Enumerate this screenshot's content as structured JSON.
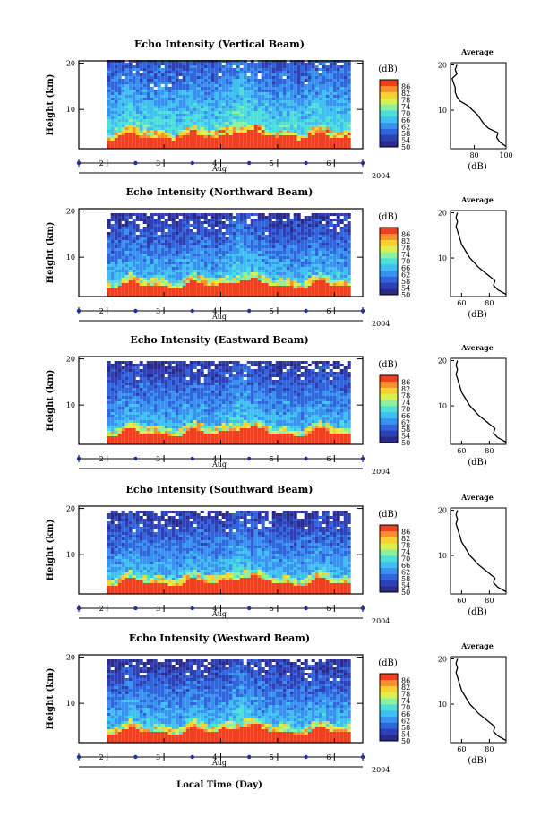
{
  "chart_data": {
    "type": "heatmap",
    "figure": {
      "xlabel": "Local Time (Day)"
    },
    "time_axis": {
      "range_days": [
        1.5,
        6.5
      ],
      "ticks": [
        2,
        3,
        4,
        5,
        6
      ],
      "tick_labels": [
        "2",
        "3",
        "4",
        "5",
        "6"
      ],
      "month_label": "Aug",
      "year_label": "2004",
      "data_start_day": 2.0,
      "data_end_day": 6.25
    },
    "height_axis": {
      "label": "Height (km)",
      "range_km": [
        1.5,
        20.5
      ],
      "ticks": [
        10,
        20
      ],
      "tick_labels": [
        "10",
        "20"
      ]
    },
    "colorbar": {
      "title": "(dB)",
      "range_db": [
        50,
        90
      ],
      "tick_values": [
        50,
        54,
        58,
        62,
        66,
        70,
        74,
        78,
        82,
        86
      ],
      "tick_labels": [
        "50",
        "54",
        "58",
        "62",
        "66",
        "70",
        "74",
        "78",
        "82",
        "86"
      ],
      "colors": [
        "#2a2a8c",
        "#2f3fb5",
        "#2f66dc",
        "#3a92f0",
        "#40c0f0",
        "#4ee0d8",
        "#8cf0a0",
        "#d8f050",
        "#f8d030",
        "#f89030",
        "#f04020"
      ]
    },
    "panels": [
      {
        "title": "Echo Intensity (Vertical Beam)",
        "profile": {
          "title": "Average",
          "xlabel": "(dB)",
          "xlim": [
            65,
            100
          ],
          "xticks": [
            80,
            100
          ],
          "xtick_labels": [
            "80",
            "100"
          ],
          "height_km": [
            2,
            3,
            4,
            5,
            6,
            7,
            8,
            9,
            10,
            11,
            12,
            13,
            14,
            15,
            16,
            17,
            18,
            19,
            20
          ],
          "db": [
            100,
            96,
            94,
            95,
            89,
            86,
            84,
            82,
            79,
            76,
            71,
            69,
            68,
            68,
            67,
            66,
            69,
            68,
            69
          ]
        }
      },
      {
        "title": "Echo Intensity (Northward Beam)",
        "profile": {
          "title": "Average",
          "xlabel": "(dB)",
          "xlim": [
            52,
            92
          ],
          "xticks": [
            60,
            80
          ],
          "xtick_labels": [
            "60",
            "80"
          ],
          "height_km": [
            2,
            3,
            4,
            5,
            6,
            7,
            8,
            9,
            10,
            11,
            12,
            13,
            14,
            15,
            16,
            17,
            18,
            19,
            20
          ],
          "db": [
            92,
            86,
            83,
            84,
            80,
            76,
            72,
            69,
            66,
            64,
            62,
            60,
            59,
            58,
            57,
            56,
            57,
            56,
            57
          ]
        }
      },
      {
        "title": "Echo Intensity (Eastward Beam)",
        "profile": {
          "title": "Average",
          "xlabel": "(dB)",
          "xlim": [
            52,
            92
          ],
          "xticks": [
            60,
            80
          ],
          "xtick_labels": [
            "60",
            "80"
          ],
          "height_km": [
            2,
            3,
            4,
            5,
            6,
            7,
            8,
            9,
            10,
            11,
            12,
            13,
            14,
            15,
            16,
            17,
            18,
            19,
            20
          ],
          "db": [
            92,
            86,
            83,
            84,
            80,
            76,
            72,
            69,
            66,
            64,
            62,
            60,
            59,
            58,
            57,
            56,
            57,
            56,
            57
          ]
        }
      },
      {
        "title": "Echo Intensity (Southward Beam)",
        "profile": {
          "title": "Average",
          "xlabel": "(dB)",
          "xlim": [
            52,
            92
          ],
          "xticks": [
            60,
            80
          ],
          "xtick_labels": [
            "60",
            "80"
          ],
          "height_km": [
            2,
            3,
            4,
            5,
            6,
            7,
            8,
            9,
            10,
            11,
            12,
            13,
            14,
            15,
            16,
            17,
            18,
            19,
            20
          ],
          "db": [
            92,
            86,
            83,
            84,
            80,
            76,
            72,
            69,
            66,
            64,
            62,
            60,
            59,
            58,
            57,
            56,
            57,
            56,
            57
          ]
        }
      },
      {
        "title": "Echo Intensity (Westward Beam)",
        "profile": {
          "title": "Average",
          "xlabel": "(dB)",
          "xlim": [
            52,
            92
          ],
          "xticks": [
            60,
            80
          ],
          "xtick_labels": [
            "60",
            "80"
          ],
          "height_km": [
            2,
            3,
            4,
            5,
            6,
            7,
            8,
            9,
            10,
            11,
            12,
            13,
            14,
            15,
            16,
            17,
            18,
            19,
            20
          ],
          "db": [
            92,
            86,
            83,
            84,
            80,
            76,
            72,
            69,
            66,
            64,
            62,
            60,
            59,
            58,
            57,
            56,
            57,
            56,
            57
          ]
        }
      }
    ]
  }
}
